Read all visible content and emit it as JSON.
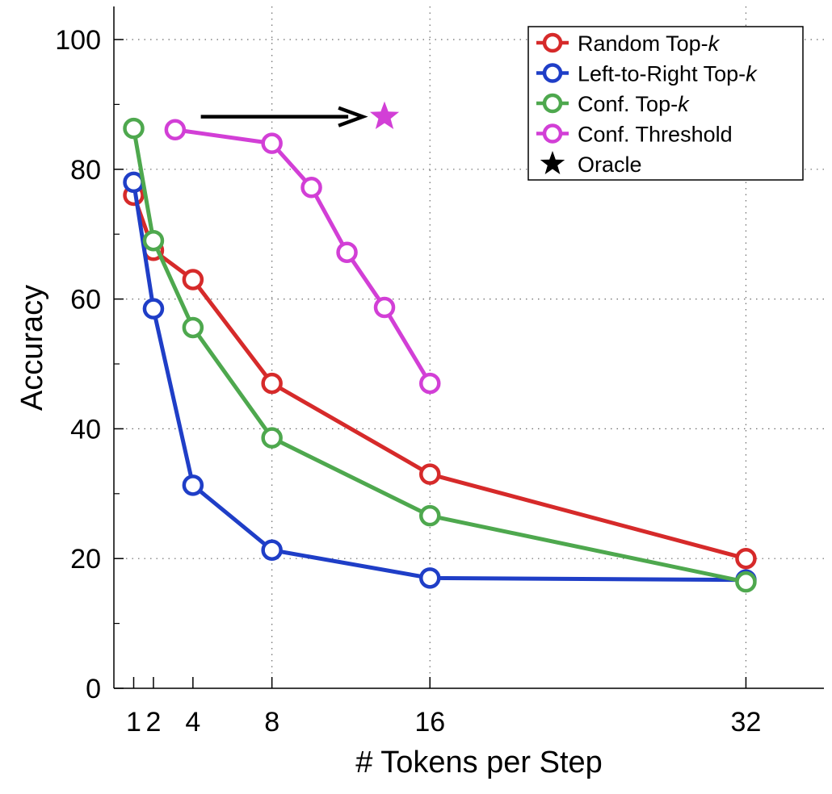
{
  "chart_data": {
    "type": "line",
    "xlabel": "# Tokens per Step",
    "ylabel": "Accuracy",
    "xlim": [
      0,
      35
    ],
    "ylim": [
      0,
      105
    ],
    "x_ticks": [
      1,
      2,
      4,
      8,
      16,
      32
    ],
    "y_ticks": [
      0,
      20,
      40,
      60,
      80,
      100
    ],
    "grid": true,
    "legend_position": "top-right",
    "series": [
      {
        "name": "Random Top-k",
        "label_prefix": "Random Top-",
        "label_italic": "k",
        "color": "#d62a2a",
        "x": [
          1,
          2,
          4,
          8,
          16,
          32
        ],
        "y": [
          76,
          67.5,
          63,
          47,
          33,
          20
        ]
      },
      {
        "name": "Left-to-Right Top-k",
        "label_prefix": "Left-to-Right Top-",
        "label_italic": "k",
        "color": "#1f3ec7",
        "x": [
          1,
          2,
          4,
          8,
          16,
          32
        ],
        "y": [
          78,
          58.5,
          31.3,
          21.3,
          17,
          16.7
        ]
      },
      {
        "name": "Conf. Top-k",
        "label_prefix": "Conf. Top-",
        "label_italic": "k",
        "color": "#4ea84e",
        "x": [
          1,
          2,
          4,
          8,
          16,
          32
        ],
        "y": [
          86.3,
          69,
          55.6,
          38.6,
          26.6,
          16.4
        ]
      },
      {
        "name": "Conf. Threshold",
        "label_prefix": "Conf. Threshold",
        "label_italic": "",
        "color": "#d23fd6",
        "x": [
          3.1,
          8,
          10,
          11.8,
          13.7,
          16
        ],
        "y": [
          86.1,
          84,
          77.2,
          67.2,
          58.7,
          47
        ]
      }
    ],
    "oracle": {
      "name": "Oracle",
      "label_prefix": "Oracle",
      "legend_color": "#000000",
      "marker_color": "#d23fd6",
      "x": 13.7,
      "y": 88.1
    },
    "annotation_arrow": {
      "from": {
        "x": 4.4,
        "y": 88.1
      },
      "to": {
        "x": 12.6,
        "y": 88.1
      },
      "color": "#000000"
    }
  }
}
